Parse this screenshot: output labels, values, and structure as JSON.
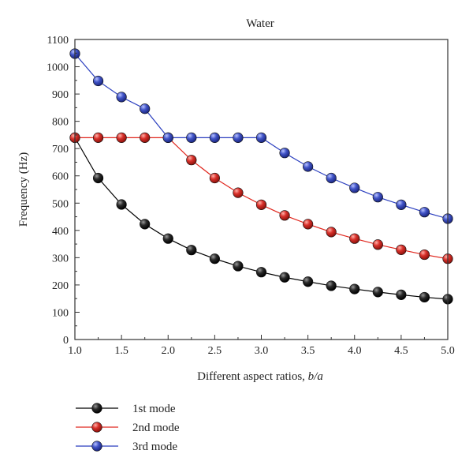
{
  "chart_data": {
    "type": "line",
    "title": "Water",
    "xlabel": "Different aspect ratios, b/a",
    "xlabel_plain": "Different aspect ratios, ",
    "xlabel_italic": "b/a",
    "ylabel": "Frequency (Hz)",
    "xlim": [
      1.0,
      5.0
    ],
    "ylim": [
      0,
      1100
    ],
    "xticks": [
      "1.0",
      "1.5",
      "2.0",
      "2.5",
      "3.0",
      "3.5",
      "4.0",
      "4.5",
      "5.0"
    ],
    "yticks": [
      "0",
      "100",
      "200",
      "300",
      "400",
      "500",
      "600",
      "700",
      "800",
      "900",
      "1000",
      "1100"
    ],
    "x": [
      1.0,
      1.25,
      1.5,
      1.75,
      2.0,
      2.25,
      2.5,
      2.75,
      3.0,
      3.25,
      3.5,
      3.75,
      4.0,
      4.25,
      4.5,
      4.75,
      5.0
    ],
    "series": [
      {
        "name": "1st mode",
        "color": "#000000",
        "marker_fill": "#1a1a1a",
        "values": [
          740,
          592,
          495,
          423,
          370,
          328,
          296,
          269,
          247,
          228,
          212,
          197,
          185,
          174,
          164,
          155,
          148
        ]
      },
      {
        "name": "2nd mode",
        "color": "#e0261d",
        "marker_fill": "#d42a22",
        "values": [
          740,
          740,
          740,
          740,
          740,
          658,
          592,
          538,
          494,
          455,
          423,
          394,
          370,
          348,
          329,
          311,
          296
        ]
      },
      {
        "name": "3rd mode",
        "color": "#2b3fbf",
        "marker_fill": "#3c4fc4",
        "values": [
          1048,
          948,
          889,
          846,
          740,
          740,
          740,
          740,
          740,
          684,
          634,
          592,
          556,
          522,
          494,
          467,
          443
        ]
      }
    ],
    "grid": false,
    "legend_position": "bottom-left"
  }
}
